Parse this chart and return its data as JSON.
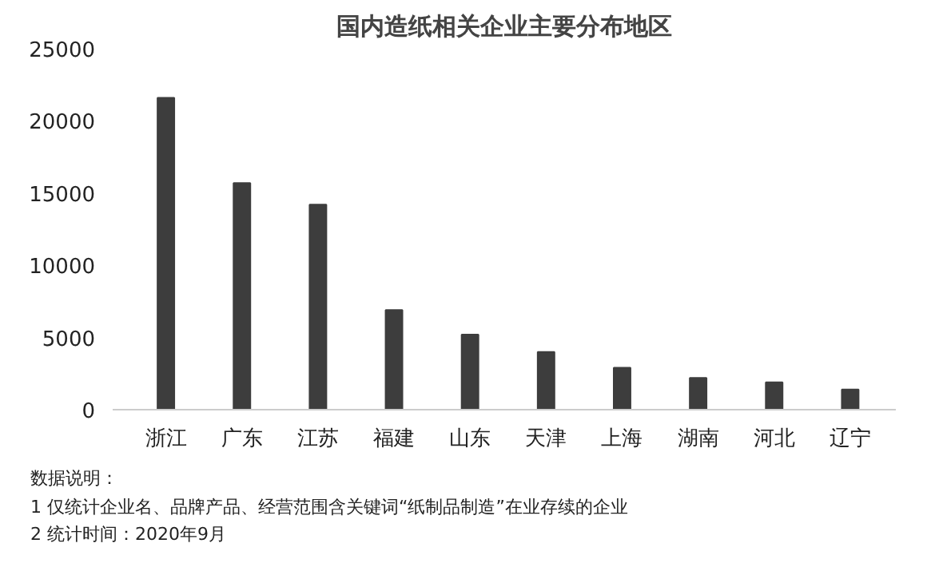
{
  "chart_data": {
    "type": "bar",
    "title": "国内造纸相关企业主要分布地区",
    "categories": [
      "浙江",
      "广东",
      "江苏",
      "福建",
      "山东",
      "天津",
      "上海",
      "湖南",
      "河北",
      "辽宁"
    ],
    "values": [
      21600,
      15700,
      14200,
      6900,
      5200,
      4000,
      2900,
      2200,
      1900,
      1400
    ],
    "color": "#3d3d3d",
    "ylim": [
      0,
      25000
    ],
    "yticks": [
      0,
      5000,
      10000,
      15000,
      20000,
      25000
    ],
    "grid": false,
    "annotations": [
      "数据说明：",
      "1 仅统计企业名、品牌产品、经营范围含关键词“纸制品制造”在业存续的企业",
      "2 统计时间：2020年9月"
    ]
  }
}
